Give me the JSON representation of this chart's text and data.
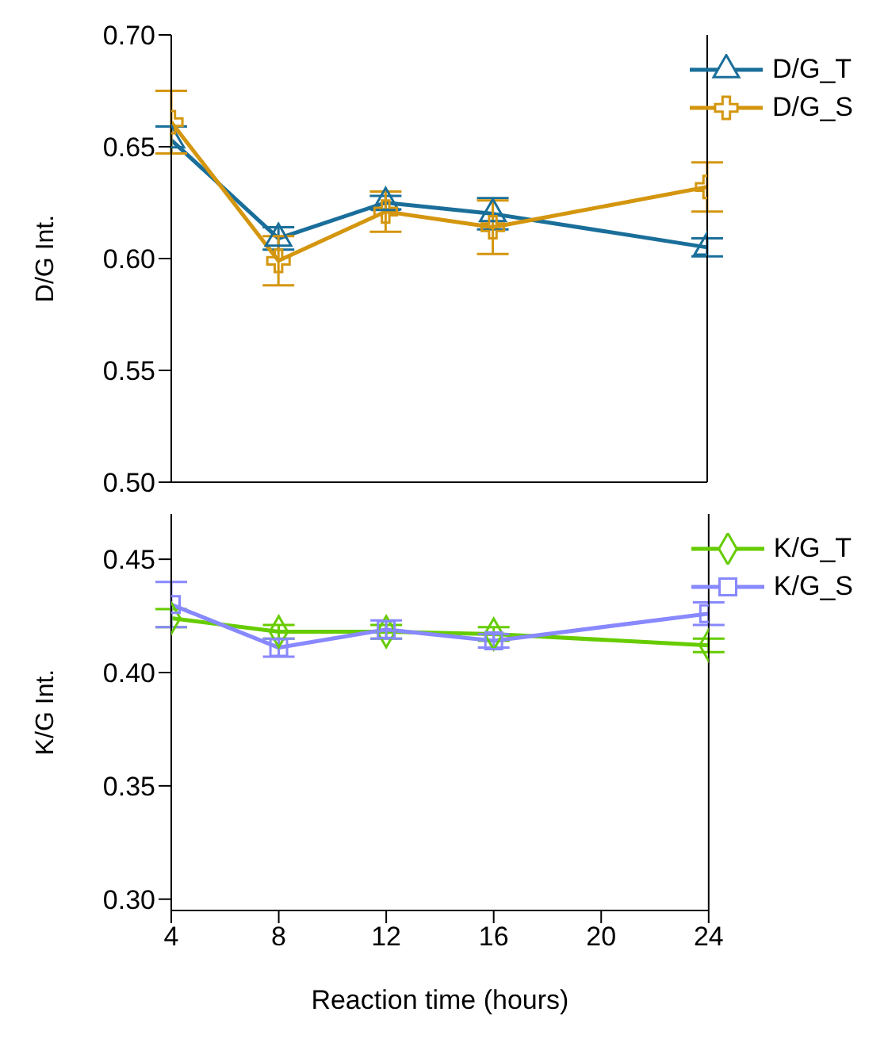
{
  "chart_data": [
    {
      "type": "line",
      "ylabel": "D/G Int.",
      "x": [
        4,
        8,
        12,
        16,
        24
      ],
      "xlim": [
        4,
        24
      ],
      "xticks": [
        4,
        8,
        12,
        16,
        20,
        24
      ],
      "ylim": [
        0.5,
        0.7
      ],
      "yticks": [
        {
          "value": 0.5,
          "label": "0.50"
        },
        0.55,
        {
          "value": 0.6,
          "label": "0.60"
        },
        0.65,
        {
          "value": 0.7,
          "label": "0.70"
        }
      ],
      "tick_labels": "y",
      "legend": "top right",
      "series": [
        {
          "name": "D/G_T",
          "color": "#1a6e9a",
          "marker": "triangle",
          "values": [
            0.653,
            0.609,
            0.625,
            0.62,
            0.605
          ],
          "errors": [
            0.006,
            0.005,
            0.003,
            0.007,
            0.004
          ]
        },
        {
          "name": "D/G_S",
          "color": "#d4960f",
          "marker": "cross",
          "values": [
            0.661,
            0.599,
            0.621,
            0.614,
            0.632
          ],
          "errors": [
            0.014,
            0.011,
            0.009,
            0.012,
            0.011
          ]
        }
      ]
    },
    {
      "type": "line",
      "xlabel": "Reaction time (hours)",
      "ylabel": "K/G Int.",
      "x": [
        4,
        8,
        12,
        16,
        24
      ],
      "xlim": [
        4,
        24
      ],
      "xticks": [
        4,
        8,
        12,
        16,
        20,
        24
      ],
      "ylim": [
        0.295,
        0.47
      ],
      "yticks": [
        {
          "value": 0.3,
          "label": "0.30"
        },
        0.35,
        {
          "value": 0.4,
          "label": "0.40"
        },
        0.45
      ],
      "legend": "top right",
      "series": [
        {
          "name": "K/G_T",
          "color": "#66cc00",
          "marker": "diamond",
          "values": [
            0.424,
            0.418,
            0.418,
            0.417,
            0.412
          ],
          "errors": [
            0.004,
            0.003,
            0.003,
            0.003,
            0.003
          ]
        },
        {
          "name": "K/G_S",
          "color": "#8888ff",
          "marker": "square",
          "values": [
            0.43,
            0.411,
            0.419,
            0.414,
            0.426
          ],
          "errors": [
            0.01,
            0.004,
            0.004,
            0.003,
            0.005
          ]
        }
      ]
    }
  ]
}
